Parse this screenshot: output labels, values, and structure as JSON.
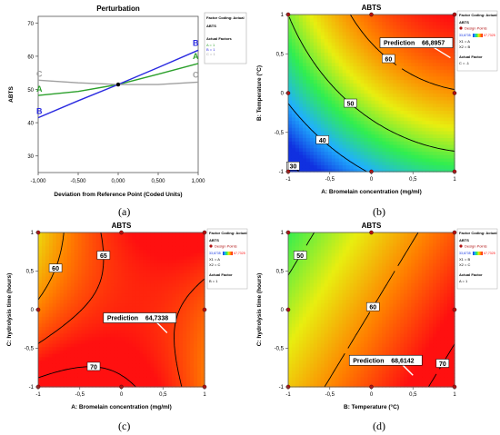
{
  "panels": [
    {
      "id": "a",
      "type": "line",
      "caption": "(a)",
      "title": "Perturbation",
      "xlabel": "Deviation from Reference Point (Coded Units)",
      "ylabel": "ABTS",
      "xlim": [
        -1,
        1
      ],
      "ylim": [
        25,
        72
      ],
      "xticks": [
        "-1,000",
        "-0,500",
        "0,000",
        "0,500",
        "1,000"
      ],
      "yticks": [
        "30",
        "40",
        "50",
        "60",
        "70"
      ],
      "legend": {
        "header": "Factor Coding: Actual",
        "response": "ABTS",
        "section": "Actual Factors",
        "entries": [
          "A = 1",
          "B = 1",
          "C = 1"
        ]
      },
      "series": [
        {
          "name": "A",
          "color": "#2ca02c",
          "x": [
            -1,
            -0.5,
            0,
            0.5,
            1
          ],
          "y": [
            48.2,
            49.4,
            51.5,
            54.6,
            57.8
          ]
        },
        {
          "name": "B",
          "color": "#2a2ae0",
          "x": [
            -1,
            -0.5,
            0,
            0.5,
            1
          ],
          "y": [
            41.5,
            46.6,
            51.5,
            56.6,
            61.8
          ]
        },
        {
          "name": "C",
          "color": "#a0a0a0",
          "x": [
            -1,
            -0.5,
            0,
            0.5,
            1
          ],
          "y": [
            52.8,
            52.0,
            51.5,
            51.5,
            52.2
          ]
        }
      ]
    },
    {
      "id": "b",
      "type": "contour",
      "caption": "(b)",
      "title": "ABTS",
      "xlabel": "A: Bromelain concentration (mg/ml)",
      "ylabel": "B: Temperature (°C)",
      "xlim": [
        -1,
        1
      ],
      "ylim": [
        -1,
        1
      ],
      "xticks": [
        "-1",
        "-0,5",
        "0",
        "0,5",
        "1"
      ],
      "yticks": [
        "-1",
        "-0,5",
        "0",
        "0,5",
        "1"
      ],
      "legend": {
        "header": "Factor Coding: Actual",
        "response": "ABTS",
        "design_points": "Design Points",
        "range_low": "33,6735",
        "range_high": "67,7325",
        "x1": "X1 = A",
        "x2": "X2 = B",
        "section": "Actual Factor",
        "fixed": "C = -1"
      },
      "surface": {
        "const": 52,
        "a": 9,
        "b": 11,
        "c": -2,
        "ab": 0,
        "ac": 0,
        "bc": 0,
        "aa": -3.5,
        "bb": -2.5,
        "cc": 0,
        "fixed_c": -1
      },
      "contours": [
        {
          "level": 30,
          "label": "30"
        },
        {
          "level": 40,
          "label": "40"
        },
        {
          "level": 50,
          "label": "50"
        },
        {
          "level": 60,
          "label": "60"
        },
        {
          "level": 70,
          "label": "70"
        }
      ],
      "design_points": [
        [
          -1,
          -1
        ],
        [
          0,
          -1
        ],
        [
          1,
          -1
        ],
        [
          -1,
          0
        ],
        [
          1,
          0
        ],
        [
          -1,
          1
        ],
        [
          0,
          1
        ],
        [
          1,
          1
        ]
      ],
      "prediction": {
        "label": "Prediction",
        "value": "66,8957",
        "x": 0.95,
        "y": 0.45
      }
    },
    {
      "id": "c",
      "type": "contour",
      "caption": "(c)",
      "title": "ABTS",
      "xlabel": "A: Bromelain concentration (mg/ml)",
      "ylabel": "C: hydrolysis time (hours)",
      "xlim": [
        -1,
        1
      ],
      "ylim": [
        -1,
        1
      ],
      "xticks": [
        "-1",
        "-0,5",
        "0",
        "0,5",
        "1"
      ],
      "yticks": [
        "-1",
        "-0,5",
        "0",
        "0,5",
        "1"
      ],
      "legend": {
        "header": "Factor Coding: Actual",
        "response": "ABTS",
        "design_points": "Design Points",
        "range_low": "33,6735",
        "range_high": "67,7325",
        "x1": "X1 = A",
        "x2": "X2 = C",
        "section": "Actual Factor",
        "fixed": "B = 1"
      },
      "surface": {
        "const": 66.5,
        "a": 1,
        "b": 0,
        "c": -2,
        "ab": 0,
        "ac": 6,
        "bc": 0,
        "aa": -4.5,
        "bb": 0,
        "cc": 2.5,
        "fixed_b": 1
      },
      "contours": [
        {
          "level": 60,
          "label": "60"
        },
        {
          "level": 65,
          "label": "65"
        },
        {
          "level": 70,
          "label": "70"
        }
      ],
      "design_points": [
        [
          -1,
          -1
        ],
        [
          0,
          -1
        ],
        [
          1,
          -1
        ],
        [
          -1,
          0
        ],
        [
          1,
          0
        ],
        [
          -1,
          1
        ],
        [
          0,
          1
        ],
        [
          1,
          1
        ]
      ],
      "prediction": {
        "label": "Prediction",
        "value": "64,7338",
        "x": 0.55,
        "y": -0.3
      }
    },
    {
      "id": "d",
      "type": "contour",
      "caption": "(d)",
      "title": "ABTS",
      "xlabel": "B: Temperature (°C)",
      "ylabel": "C: hydrolysis time (hours)",
      "xlim": [
        -1,
        1
      ],
      "ylim": [
        -1,
        1
      ],
      "xticks": [
        "-1",
        "-0,5",
        "0",
        "0,5",
        "1"
      ],
      "yticks": [
        "-1",
        "-0,5",
        "0",
        "0,5",
        "1"
      ],
      "legend": {
        "header": "Factor Coding: Actual",
        "response": "ABTS",
        "design_points": "Design Points",
        "range_low": "33,6735",
        "range_high": "67,7325",
        "x1": "X1 = B",
        "x2": "X2 = C",
        "section": "Actual Factor",
        "fixed": "A = 1"
      },
      "surface": {
        "const": 60,
        "a": 0,
        "b": 8,
        "c": -4.5,
        "ab": 0,
        "ac": 0,
        "bc": 0,
        "aa": 0,
        "bb": 0,
        "cc": 0,
        "fixed_a": 1
      },
      "contours": [
        {
          "level": 50,
          "label": "50"
        },
        {
          "level": 60,
          "label": "60"
        },
        {
          "level": 70,
          "label": "70"
        }
      ],
      "design_points": [
        [
          -1,
          -1
        ],
        [
          0,
          -1
        ],
        [
          1,
          -1
        ],
        [
          -1,
          0
        ],
        [
          1,
          0
        ],
        [
          -1,
          1
        ],
        [
          0,
          1
        ],
        [
          1,
          1
        ]
      ],
      "prediction": {
        "label": "Prediction",
        "value": "68,6142",
        "x": 0.5,
        "y": -0.85
      }
    }
  ],
  "colormap": [
    "#1030e0",
    "#20b0ff",
    "#30ee50",
    "#e8ee10",
    "#ff8000",
    "#ff1010"
  ],
  "colormap_range": [
    33.6735,
    67.7325
  ],
  "design_point_color": "#b01010"
}
